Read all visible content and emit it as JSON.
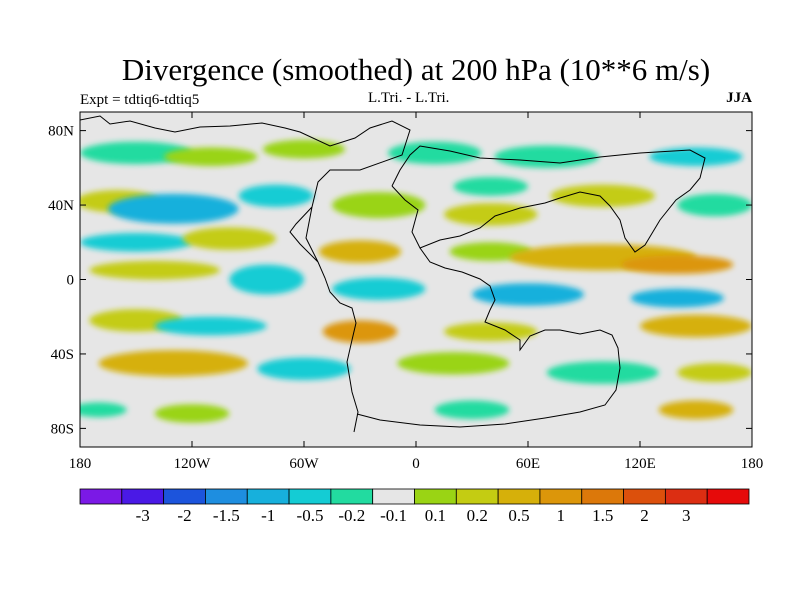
{
  "chart_data": {
    "type": "heatmap",
    "title": "Divergence (smoothed) at 200 hPa (10**6 m/s)",
    "subtitle_left": "Expt = tdtiq6-tdtiq5",
    "subtitle_center": "L.Tri. - L.Tri.",
    "subtitle_right": "JJA",
    "xlim": [
      -180,
      180
    ],
    "ylim": [
      -90,
      90
    ],
    "x_ticks": [
      {
        "value": -180,
        "label": "180"
      },
      {
        "value": -120,
        "label": "120W"
      },
      {
        "value": -60,
        "label": "60W"
      },
      {
        "value": 0,
        "label": "0"
      },
      {
        "value": 60,
        "label": "60E"
      },
      {
        "value": 120,
        "label": "120E"
      },
      {
        "value": 180,
        "label": "180"
      }
    ],
    "y_ticks": [
      {
        "value": 80,
        "label": "80N"
      },
      {
        "value": 40,
        "label": "40N"
      },
      {
        "value": 0,
        "label": "0"
      },
      {
        "value": -40,
        "label": "40S"
      },
      {
        "value": -80,
        "label": "80S"
      }
    ],
    "colorbar": {
      "colors": [
        "#7b19e6",
        "#4a19e6",
        "#1c54dc",
        "#1e8ee0",
        "#17b0dc",
        "#14ccd4",
        "#22dba0",
        "#e6e6e6",
        "#9ad414",
        "#c4cc12",
        "#d6b00a",
        "#dc960a",
        "#dc780a",
        "#dc500c",
        "#dc2e12",
        "#e60a0a"
      ],
      "labels": [
        "-3",
        "-2",
        "-1.5",
        "-1",
        "-0.5",
        "-0.2",
        "-0.1",
        "0.1",
        "0.2",
        "0.5",
        "1",
        "1.5",
        "2",
        "3"
      ]
    },
    "regions": [
      {
        "lon": -150,
        "lat": 68,
        "wlon": 30,
        "wlat": 6,
        "class": 6
      },
      {
        "lon": -110,
        "lat": 66,
        "wlon": 25,
        "wlat": 5,
        "class": 8
      },
      {
        "lon": -60,
        "lat": 70,
        "wlon": 22,
        "wlat": 5,
        "class": 8
      },
      {
        "lon": 10,
        "lat": 68,
        "wlon": 25,
        "wlat": 6,
        "class": 6
      },
      {
        "lon": 70,
        "lat": 66,
        "wlon": 28,
        "wlat": 6,
        "class": 6
      },
      {
        "lon": 150,
        "lat": 66,
        "wlon": 25,
        "wlat": 5,
        "class": 5
      },
      {
        "lon": -160,
        "lat": 42,
        "wlon": 22,
        "wlat": 6,
        "class": 9
      },
      {
        "lon": -130,
        "lat": 38,
        "wlon": 35,
        "wlat": 8,
        "class": 4
      },
      {
        "lon": -75,
        "lat": 45,
        "wlon": 20,
        "wlat": 6,
        "class": 5
      },
      {
        "lon": -20,
        "lat": 40,
        "wlon": 25,
        "wlat": 7,
        "class": 8
      },
      {
        "lon": 40,
        "lat": 35,
        "wlon": 25,
        "wlat": 6,
        "class": 9
      },
      {
        "lon": 40,
        "lat": 50,
        "wlon": 20,
        "wlat": 5,
        "class": 6
      },
      {
        "lon": 100,
        "lat": 45,
        "wlon": 28,
        "wlat": 6,
        "class": 9
      },
      {
        "lon": 160,
        "lat": 40,
        "wlon": 20,
        "wlat": 6,
        "class": 6
      },
      {
        "lon": -150,
        "lat": 20,
        "wlon": 30,
        "wlat": 5,
        "class": 5
      },
      {
        "lon": -100,
        "lat": 22,
        "wlon": 25,
        "wlat": 6,
        "class": 9
      },
      {
        "lon": -30,
        "lat": 15,
        "wlon": 22,
        "wlat": 6,
        "class": 10
      },
      {
        "lon": 40,
        "lat": 15,
        "wlon": 22,
        "wlat": 5,
        "class": 8
      },
      {
        "lon": 100,
        "lat": 12,
        "wlon": 50,
        "wlat": 7,
        "class": 10
      },
      {
        "lon": 140,
        "lat": 8,
        "wlon": 30,
        "wlat": 5,
        "class": 11
      },
      {
        "lon": -140,
        "lat": 5,
        "wlon": 35,
        "wlat": 5,
        "class": 9
      },
      {
        "lon": -80,
        "lat": 0,
        "wlon": 20,
        "wlat": 8,
        "class": 5
      },
      {
        "lon": -20,
        "lat": -5,
        "wlon": 25,
        "wlat": 6,
        "class": 5
      },
      {
        "lon": 60,
        "lat": -8,
        "wlon": 30,
        "wlat": 6,
        "class": 4
      },
      {
        "lon": 140,
        "lat": -10,
        "wlon": 25,
        "wlat": 5,
        "class": 4
      },
      {
        "lon": -150,
        "lat": -22,
        "wlon": 25,
        "wlat": 6,
        "class": 9
      },
      {
        "lon": -110,
        "lat": -25,
        "wlon": 30,
        "wlat": 5,
        "class": 5
      },
      {
        "lon": -30,
        "lat": -28,
        "wlon": 20,
        "wlat": 6,
        "class": 11
      },
      {
        "lon": 40,
        "lat": -28,
        "wlon": 25,
        "wlat": 5,
        "class": 9
      },
      {
        "lon": 150,
        "lat": -25,
        "wlon": 30,
        "wlat": 6,
        "class": 10
      },
      {
        "lon": -130,
        "lat": -45,
        "wlon": 40,
        "wlat": 7,
        "class": 10
      },
      {
        "lon": -60,
        "lat": -48,
        "wlon": 25,
        "wlat": 6,
        "class": 5
      },
      {
        "lon": 20,
        "lat": -45,
        "wlon": 30,
        "wlat": 6,
        "class": 8
      },
      {
        "lon": 100,
        "lat": -50,
        "wlon": 30,
        "wlat": 6,
        "class": 6
      },
      {
        "lon": 160,
        "lat": -50,
        "wlon": 20,
        "wlat": 5,
        "class": 9
      },
      {
        "lon": -170,
        "lat": -70,
        "wlon": 15,
        "wlat": 4,
        "class": 6
      },
      {
        "lon": -120,
        "lat": -72,
        "wlon": 20,
        "wlat": 5,
        "class": 8
      },
      {
        "lon": 30,
        "lat": -70,
        "wlon": 20,
        "wlat": 5,
        "class": 6
      },
      {
        "lon": 150,
        "lat": -70,
        "wlon": 20,
        "wlat": 5,
        "class": 10
      }
    ]
  }
}
